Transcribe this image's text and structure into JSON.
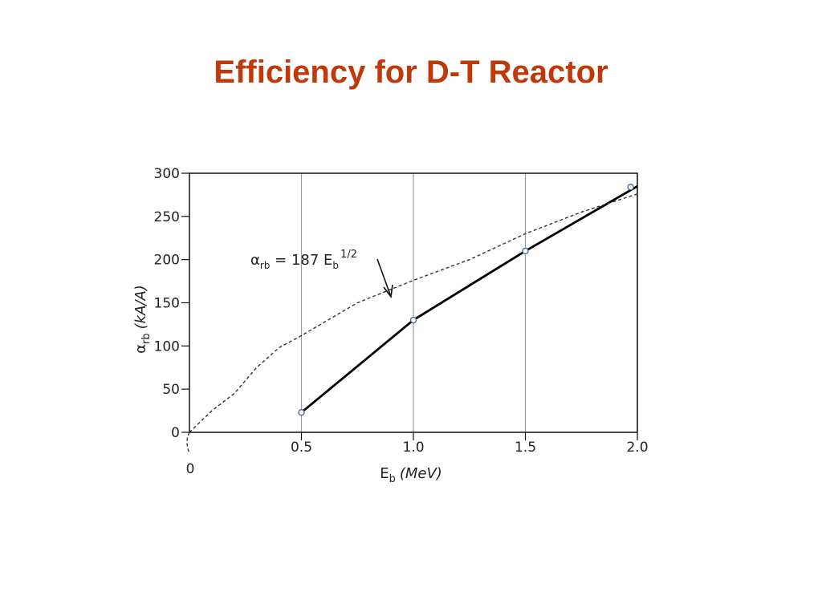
{
  "slide": {
    "title": "Efficiency for D-T Reactor"
  },
  "chart_data": {
    "type": "line",
    "title": "Efficiency for D-T Reactor",
    "xlabel": {
      "main": "E",
      "sub": "b",
      "unit": "(MeV)"
    },
    "ylabel": {
      "main": "α",
      "sub": "rb",
      "unit": "(kA/A)"
    },
    "xlim": [
      0,
      2.0
    ],
    "ylim": [
      0,
      300
    ],
    "x_ticks": [
      0.5,
      1.0,
      1.5,
      2.0
    ],
    "x_tick_labels": [
      "0.5",
      "1.0",
      "1.5",
      "2.0"
    ],
    "x_origin_label": "0",
    "y_ticks": [
      0,
      50,
      100,
      150,
      200,
      250,
      300
    ],
    "y_tick_labels": [
      "0",
      "50",
      "100",
      "150",
      "200",
      "250",
      "300"
    ],
    "grid": "vertical",
    "series": [
      {
        "style": "solid",
        "x": [
          0.5,
          1.0,
          1.5,
          2.0
        ],
        "y": [
          23,
          130,
          210,
          285
        ]
      },
      {
        "style": "dashed",
        "x": [
          0,
          0.1,
          0.2,
          0.3,
          0.4,
          0.5,
          0.75,
          1.0,
          1.25,
          1.5,
          1.75,
          2.0
        ],
        "y": [
          0,
          25,
          45,
          75,
          98,
          112,
          150,
          176,
          200,
          230,
          255,
          276
        ]
      }
    ],
    "markers": {
      "x": [
        0.5,
        1.0,
        1.5,
        1.97
      ],
      "y": [
        23,
        130,
        210,
        284
      ]
    },
    "annotation": {
      "base": "α",
      "base_sub": "rb",
      "equals": " = 187 E",
      "var_sub": "b",
      "exponent": "1/2"
    }
  }
}
